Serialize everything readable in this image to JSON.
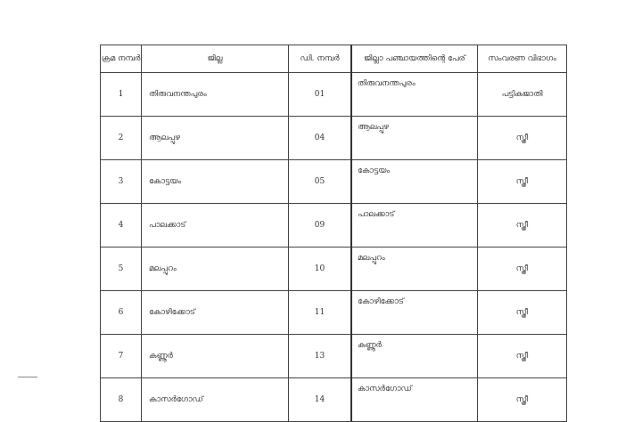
{
  "table": {
    "headers": [
      "ക്രമ നമ്പർ",
      "ജില്ല",
      "ഡി. നമ്പർ",
      "ജില്ലാ പഞ്ചായത്തിന്റെ പേര്",
      "സംവരണ വിഭാഗം"
    ],
    "rows": [
      [
        "1",
        "തിരുവനന്തപുരം",
        "01",
        "തിരുവനന്തപുരം",
        "പട്ടികജാതി"
      ],
      [
        "2",
        "ആലപ്പുഴ",
        "04",
        "ആലപ്പുഴ",
        "സ്ത്രീ"
      ],
      [
        "3",
        "കോട്ടയം",
        "05",
        "കോട്ടയം",
        "സ്ത്രീ"
      ],
      [
        "4",
        "പാലക്കാട്",
        "09",
        "പാലക്കാട്",
        "സ്ത്രീ"
      ],
      [
        "5",
        "മലപ്പുറം",
        "10",
        "മലപ്പുറം",
        "സ്ത്രീ"
      ],
      [
        "6",
        "കോഴിക്കോട്",
        "11",
        "കോഴിക്കോട്",
        "സ്ത്രീ"
      ],
      [
        "7",
        "കണ്ണൂർ",
        "13",
        "കണ്ണൂർ",
        "സ്ത്രീ"
      ],
      [
        "8",
        "കാസർഗോഡ്",
        "14",
        "കാസർഗോഡ്",
        "സ്ത്രീ"
      ]
    ]
  }
}
